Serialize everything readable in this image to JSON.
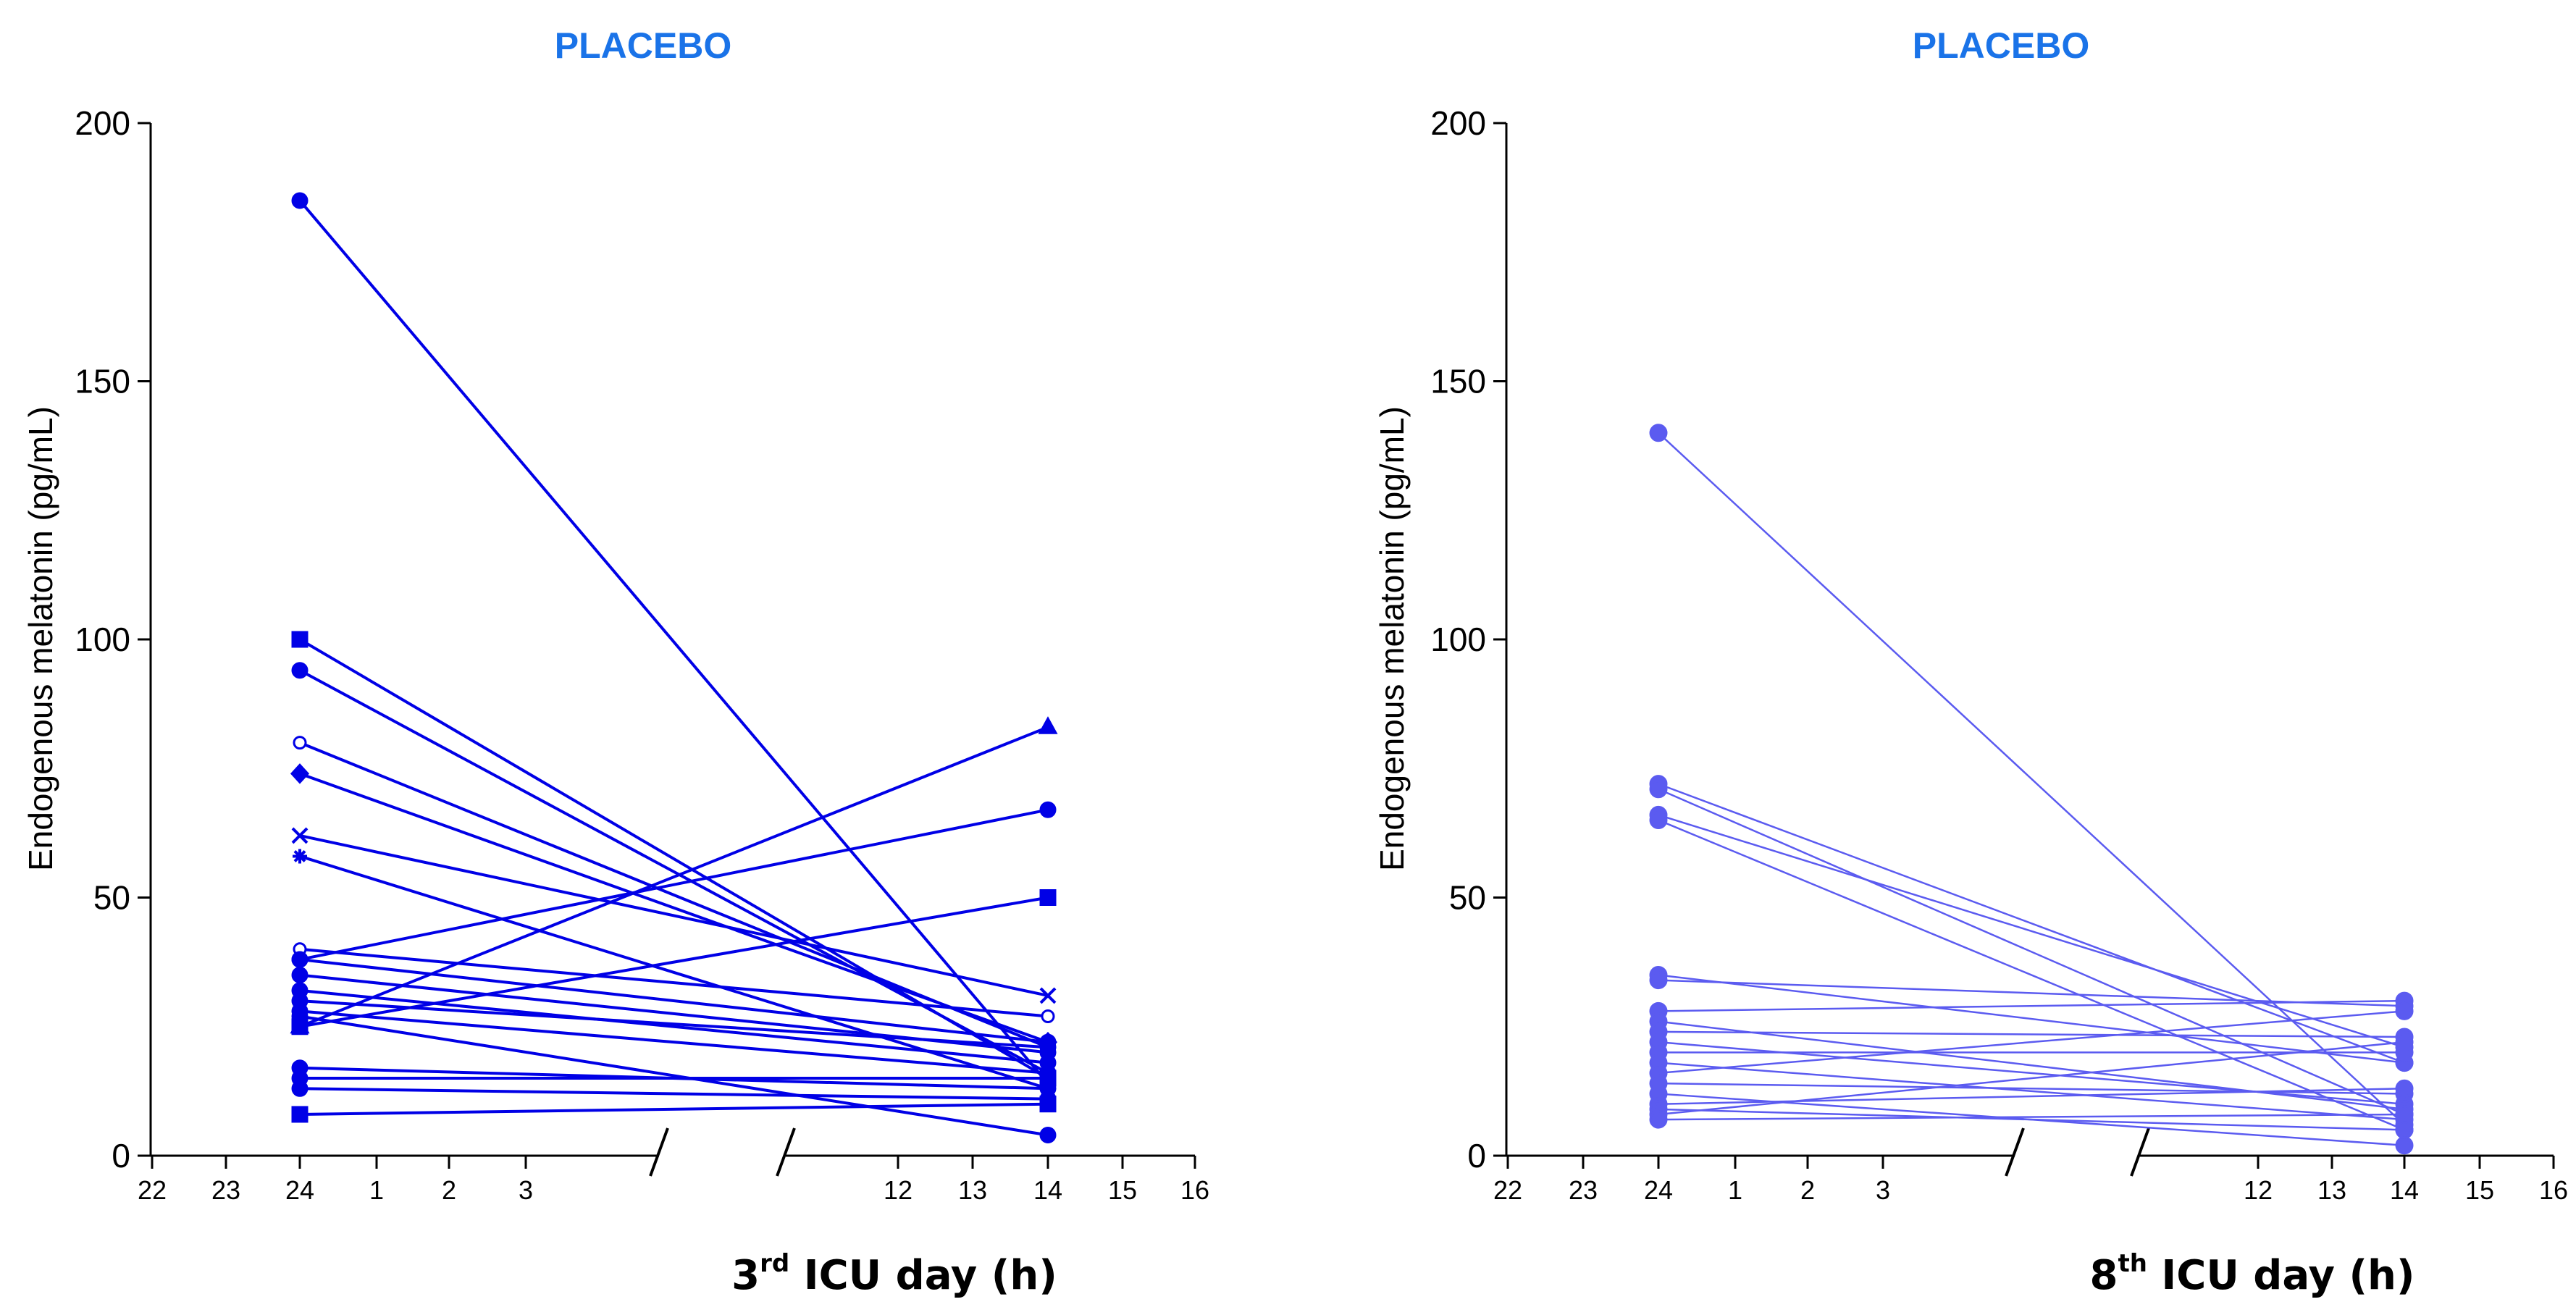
{
  "chart_data": [
    {
      "type": "line",
      "title": "PLACEBO",
      "title_color": "#1a73e8",
      "series_color": "#0000e6",
      "ylabel": "Endogenous melatonin (pg/mL)",
      "xlabel_prefix": "3",
      "xlabel_sup": "rd",
      "xlabel_suffix": " ICU day (h)",
      "ylim": [
        0,
        200
      ],
      "yticks": [
        "0",
        "50",
        "100",
        "150",
        "200"
      ],
      "xticks": [
        "22",
        "23",
        "24",
        "1",
        "2",
        "3",
        "12",
        "13",
        "14",
        "15",
        "16"
      ],
      "x_axis_break": true,
      "timepoints": [
        "24",
        "14"
      ],
      "series": [
        {
          "marker": "circle",
          "values": [
            185,
            14
          ]
        },
        {
          "marker": "square",
          "values": [
            100,
            15
          ]
        },
        {
          "marker": "circle",
          "values": [
            94,
            16
          ]
        },
        {
          "marker": "open-circle",
          "values": [
            80,
            21
          ]
        },
        {
          "marker": "diamond",
          "values": [
            74,
            22
          ]
        },
        {
          "marker": "x",
          "values": [
            62,
            31
          ]
        },
        {
          "marker": "star",
          "values": [
            58,
            13
          ]
        },
        {
          "marker": "open-circle",
          "values": [
            40,
            27
          ]
        },
        {
          "marker": "circle",
          "values": [
            38,
            67
          ]
        },
        {
          "marker": "circle",
          "values": [
            38,
            22
          ]
        },
        {
          "marker": "triangle",
          "values": [
            25,
            83
          ]
        },
        {
          "marker": "square",
          "values": [
            25,
            50
          ]
        },
        {
          "marker": "circle",
          "values": [
            35,
            20
          ]
        },
        {
          "marker": "circle",
          "values": [
            32,
            18
          ]
        },
        {
          "marker": "circle",
          "values": [
            30,
            21
          ]
        },
        {
          "marker": "circle",
          "values": [
            28,
            16
          ]
        },
        {
          "marker": "circle",
          "values": [
            27,
            4
          ]
        },
        {
          "marker": "circle",
          "values": [
            17,
            13
          ]
        },
        {
          "marker": "circle",
          "values": [
            15,
            15
          ]
        },
        {
          "marker": "circle",
          "values": [
            13,
            11
          ]
        },
        {
          "marker": "square",
          "values": [
            8,
            10
          ]
        }
      ]
    },
    {
      "type": "line",
      "title": "PLACEBO",
      "title_color": "#1a73e8",
      "series_color": "#5b5bf0",
      "ylabel": "Endogenous melatonin (pg/mL)",
      "xlabel_prefix": "8",
      "xlabel_sup": "th",
      "xlabel_suffix": " ICU day (h)",
      "ylim": [
        0,
        200
      ],
      "yticks": [
        "0",
        "50",
        "100",
        "150",
        "200"
      ],
      "xticks": [
        "22",
        "23",
        "24",
        "1",
        "2",
        "3",
        "12",
        "13",
        "14",
        "15",
        "16"
      ],
      "x_axis_break": true,
      "timepoints": [
        "24",
        "14"
      ],
      "series": [
        {
          "marker": "circle",
          "values": [
            140,
            6
          ]
        },
        {
          "marker": "circle",
          "values": [
            72,
            18
          ]
        },
        {
          "marker": "circle",
          "values": [
            71,
            8
          ]
        },
        {
          "marker": "circle",
          "values": [
            66,
            21
          ]
        },
        {
          "marker": "circle",
          "values": [
            65,
            5
          ]
        },
        {
          "marker": "circle",
          "values": [
            35,
            18
          ]
        },
        {
          "marker": "circle",
          "values": [
            34,
            29
          ]
        },
        {
          "marker": "circle",
          "values": [
            28,
            30
          ]
        },
        {
          "marker": "circle",
          "values": [
            26,
            9
          ]
        },
        {
          "marker": "circle",
          "values": [
            24,
            23
          ]
        },
        {
          "marker": "circle",
          "values": [
            22,
            10
          ]
        },
        {
          "marker": "circle",
          "values": [
            20,
            20
          ]
        },
        {
          "marker": "circle",
          "values": [
            18,
            7
          ]
        },
        {
          "marker": "circle",
          "values": [
            16,
            28
          ]
        },
        {
          "marker": "circle",
          "values": [
            14,
            12
          ]
        },
        {
          "marker": "circle",
          "values": [
            12,
            2
          ]
        },
        {
          "marker": "circle",
          "values": [
            10,
            13
          ]
        },
        {
          "marker": "circle",
          "values": [
            9,
            5
          ]
        },
        {
          "marker": "circle",
          "values": [
            8,
            22
          ]
        },
        {
          "marker": "circle",
          "values": [
            7,
            8
          ]
        }
      ]
    }
  ]
}
